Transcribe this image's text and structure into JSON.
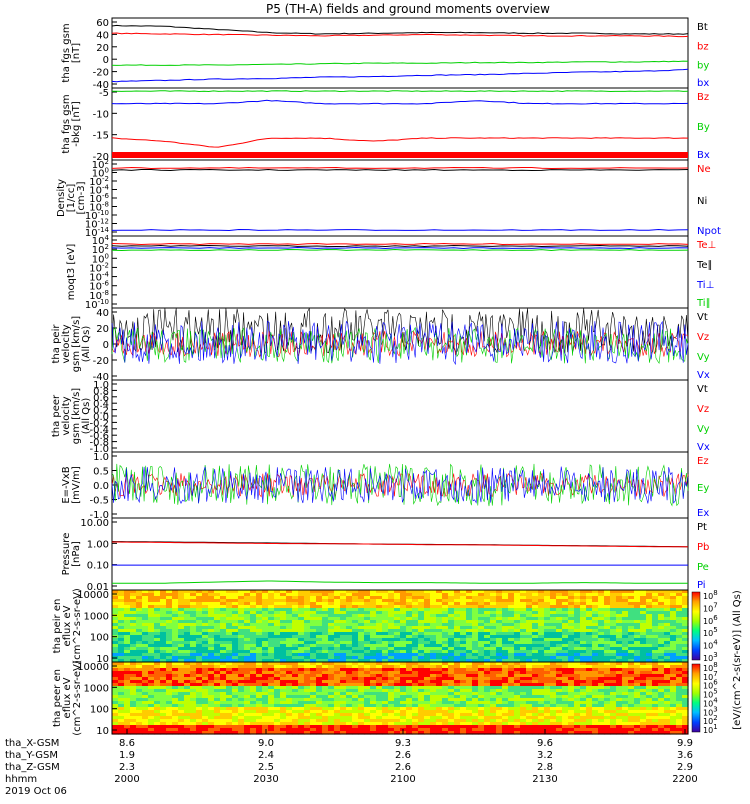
{
  "title": "P5 (TH-A) fields and ground moments overview",
  "colors": {
    "black": "#000000",
    "red": "#ff0000",
    "green": "#00d000",
    "blue": "#0000ff"
  },
  "colorbar_label": "[eV/(cm^2-s(sr-eV)] (All Qs)",
  "footer": {
    "row_labels": [
      "tha_X-GSM",
      "tha_Y-GSM",
      "tha_Z-GSM",
      "hhmm",
      "2019 Oct 06"
    ],
    "columns": [
      [
        "8.6",
        "1.9",
        "2.3",
        "2000"
      ],
      [
        "9.0",
        "2.4",
        "2.5",
        "2030"
      ],
      [
        "9.3",
        "2.6",
        "2.6",
        "2100"
      ],
      [
        "9.6",
        "3.2",
        "2.8",
        "2130"
      ],
      [
        "9.9",
        "3.6",
        "2.9",
        "2200"
      ]
    ]
  },
  "chart_data": [
    {
      "type": "line",
      "ylabel": "tha fgs gsm [nT]",
      "yticks": [
        "60",
        "40",
        "20",
        "0",
        "-20",
        "-40"
      ],
      "ylim": [
        -45,
        65
      ],
      "series": [
        {
          "name": "Bt",
          "color": "#000000",
          "values": [
            53,
            52,
            47,
            42,
            40,
            41,
            42,
            42,
            41,
            41,
            40,
            40
          ]
        },
        {
          "name": "bz",
          "color": "#ff0000",
          "values": [
            41,
            40,
            39,
            38,
            37,
            38,
            39,
            38,
            37,
            37,
            37,
            36
          ]
        },
        {
          "name": "by",
          "color": "#00d000",
          "values": [
            -9,
            -9,
            -9,
            -8,
            -7,
            -6,
            -6,
            -5,
            -5,
            -4,
            -4,
            -3
          ]
        },
        {
          "name": "bx",
          "color": "#0000ff",
          "values": [
            -35,
            -33,
            -31,
            -30,
            -28,
            -27,
            -25,
            -24,
            -22,
            -20,
            -19,
            -16
          ]
        }
      ]
    },
    {
      "type": "line",
      "ylabel": "tha fgs gsm -bkg [nT]",
      "yticks": [
        "-5",
        "-10",
        "-15",
        "-20"
      ],
      "ylim": [
        -23,
        0
      ],
      "series": [
        {
          "name": "Bz",
          "color": "#ff0000",
          "values": [
            -16,
            -17,
            -19,
            -16,
            -16,
            -17,
            -16,
            -16,
            -16,
            -16,
            -16,
            -16
          ]
        },
        {
          "name": "By",
          "color": "#00d000",
          "values": [
            -1,
            -1,
            -1,
            -1,
            -1,
            -1,
            -1,
            -1,
            -1,
            -1,
            -1,
            -1
          ]
        },
        {
          "name": "Bx",
          "color": "#0000ff",
          "values": [
            -5,
            -5,
            -5,
            -4,
            -5,
            -5,
            -5,
            -4,
            -5,
            -5,
            -5,
            -5
          ]
        }
      ]
    },
    {
      "type": "line",
      "ylabel": "Density [1/cc] [cm-3]",
      "yticks": [
        "10^2",
        "10^0",
        "10^-2",
        "10^-4",
        "10^-6",
        "10^-8",
        "10^-10",
        "10^-12",
        "10^-14"
      ],
      "series": [
        {
          "name": "Ne",
          "color": "#ff0000"
        },
        {
          "name": "Ni",
          "color": "#000000"
        },
        {
          "name": "Npot",
          "color": "#0000ff"
        }
      ]
    },
    {
      "type": "line",
      "ylabel": "moqt3 [eV]",
      "yticks": [
        "10^4",
        "10^2",
        "10^0",
        "10^-2",
        "10^-4",
        "10^-6",
        "10^-8",
        "10^-10"
      ],
      "series": [
        {
          "name": "Te⊥",
          "color": "#ff0000"
        },
        {
          "name": "Te∥",
          "color": "#000000"
        },
        {
          "name": "Ti⊥",
          "color": "#0000ff"
        },
        {
          "name": "Ti∥",
          "color": "#00d000"
        }
      ]
    },
    {
      "type": "line",
      "ylabel": "tha peir velocity gsm [km/s] (All Qs)",
      "yticks": [
        "40",
        "20",
        "0",
        "-20",
        "-40"
      ],
      "ylim": [
        -45,
        45
      ],
      "series": [
        {
          "name": "Vt",
          "color": "#000000"
        },
        {
          "name": "Vz",
          "color": "#ff0000"
        },
        {
          "name": "Vy",
          "color": "#00d000"
        },
        {
          "name": "Vx",
          "color": "#0000ff"
        }
      ]
    },
    {
      "type": "line",
      "ylabel": "tha peer velocity gsm [km/s] (All Qs)",
      "yticks": [
        "1.0",
        "0.8",
        "0.6",
        "0.4",
        "0.2",
        "0.0",
        "-0.2",
        "-0.4",
        "-0.6",
        "-0.8",
        "-1.0"
      ],
      "ylim": [
        -1,
        1
      ],
      "series": [
        {
          "name": "Vt",
          "color": "#000000"
        },
        {
          "name": "Vz",
          "color": "#ff0000"
        },
        {
          "name": "Vy",
          "color": "#00d000"
        },
        {
          "name": "Vx",
          "color": "#0000ff"
        }
      ]
    },
    {
      "type": "line",
      "ylabel": "E=-VxB [mV/m]",
      "yticks": [
        "1.0",
        "0.5",
        "0.0",
        "-0.5",
        "-1.0"
      ],
      "ylim": [
        -1.1,
        1.1
      ],
      "series": [
        {
          "name": "Ez",
          "color": "#ff0000"
        },
        {
          "name": "Ey",
          "color": "#00d000"
        },
        {
          "name": "Ex",
          "color": "#0000ff"
        }
      ]
    },
    {
      "type": "line",
      "ylabel": "Pressure [nPa]",
      "yticks": [
        "10.00",
        "1.00",
        "0.10",
        "0.01"
      ],
      "series": [
        {
          "name": "Pt",
          "color": "#000000",
          "values": [
            1.1,
            1.05,
            1.0,
            0.95,
            0.9,
            0.85,
            0.82,
            0.8,
            0.75,
            0.72,
            0.68,
            0.65
          ]
        },
        {
          "name": "Pb",
          "color": "#ff0000",
          "values": [
            1.05,
            1.0,
            0.95,
            0.9,
            0.88,
            0.85,
            0.8,
            0.78,
            0.74,
            0.7,
            0.66,
            0.64
          ]
        },
        {
          "name": "Pe",
          "color": "#00d000",
          "values": [
            0.016,
            0.016,
            0.018,
            0.02,
            0.018,
            0.017,
            0.017,
            0.016,
            0.016,
            0.017,
            0.016,
            0.016
          ]
        },
        {
          "name": "Pi",
          "color": "#0000ff",
          "values": [
            0.1,
            0.1,
            0.1,
            0.1,
            0.1,
            0.1,
            0.1,
            0.1,
            0.1,
            0.1,
            0.1,
            0.1
          ]
        }
      ]
    },
    {
      "type": "heatmap",
      "ylabel": "tha peir en eflux eV (cm^2-s-sr-eV)",
      "yticks": [
        "10000",
        "1000",
        "100",
        "10"
      ],
      "colorbar_ticks": [
        "10^8",
        "10^7",
        "10^6",
        "10^5",
        "10^4",
        "10^3"
      ]
    },
    {
      "type": "heatmap",
      "ylabel": "tha peer en eflux eV (cm^2-s-sr-eV)",
      "yticks": [
        "10000",
        "1000",
        "100",
        "10"
      ],
      "colorbar_ticks": [
        "10^8",
        "10^7",
        "10^6",
        "10^5",
        "10^4",
        "10^3",
        "10^2",
        "10^1"
      ]
    }
  ]
}
